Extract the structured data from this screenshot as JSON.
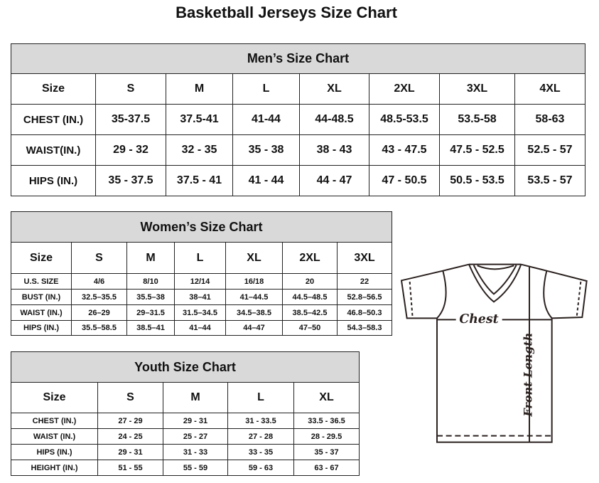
{
  "title": "Basketball Jerseys Size Chart",
  "men": {
    "heading": "Men’s Size Chart",
    "header": [
      "Size",
      "S",
      "M",
      "L",
      "XL",
      "2XL",
      "3XL",
      "4XL"
    ],
    "rows": [
      [
        "CHEST (IN.)",
        "35-37.5",
        "37.5-41",
        "41-44",
        "44-48.5",
        "48.5-53.5",
        "53.5-58",
        "58-63"
      ],
      [
        "WAIST(IN.)",
        "29 - 32",
        "32 - 35",
        "35 - 38",
        "38 - 43",
        "43 - 47.5",
        "47.5 - 52.5",
        "52.5 - 57"
      ],
      [
        "HIPS (IN.)",
        "35 - 37.5",
        "37.5 - 41",
        "41 - 44",
        "44 - 47",
        "47 - 50.5",
        "50.5 - 53.5",
        "53.5 - 57"
      ]
    ]
  },
  "women": {
    "heading": "Women’s Size Chart",
    "header": [
      "Size",
      "S",
      "M",
      "L",
      "XL",
      "2XL",
      "3XL"
    ],
    "rows": [
      [
        "U.S. SIZE",
        "4/6",
        "8/10",
        "12/14",
        "16/18",
        "20",
        "22"
      ],
      [
        "BUST (IN.)",
        "32.5–35.5",
        "35.5–38",
        "38–41",
        "41–44.5",
        "44.5–48.5",
        "52.8–56.5"
      ],
      [
        "WAIST (IN.)",
        "26–29",
        "29–31.5",
        "31.5–34.5",
        "34.5–38.5",
        "38.5–42.5",
        "46.8–50.3"
      ],
      [
        "HIPS (IN.)",
        "35.5–58.5",
        "38.5–41",
        "41–44",
        "44–47",
        "47–50",
        "54.3–58.3"
      ]
    ]
  },
  "youth": {
    "heading": "Youth Size Chart",
    "header": [
      "Size",
      "S",
      "M",
      "L",
      "XL"
    ],
    "rows": [
      [
        "CHEST (IN.)",
        "27 - 29",
        "29 - 31",
        "31 - 33.5",
        "33.5 - 36.5"
      ],
      [
        "WAIST (IN.)",
        "24 - 25",
        "25 - 27",
        "27 - 28",
        "28 - 29.5"
      ],
      [
        "HIPS (IN.)",
        "29 - 31",
        "31 - 33",
        "33 - 35",
        "35 - 37"
      ],
      [
        "HEIGHT (IN.)",
        "51 - 55",
        "55 - 59",
        "59 - 63",
        "63 - 67"
      ]
    ]
  },
  "diagram": {
    "chest_label": "Chest",
    "length_label": "Front Length"
  }
}
